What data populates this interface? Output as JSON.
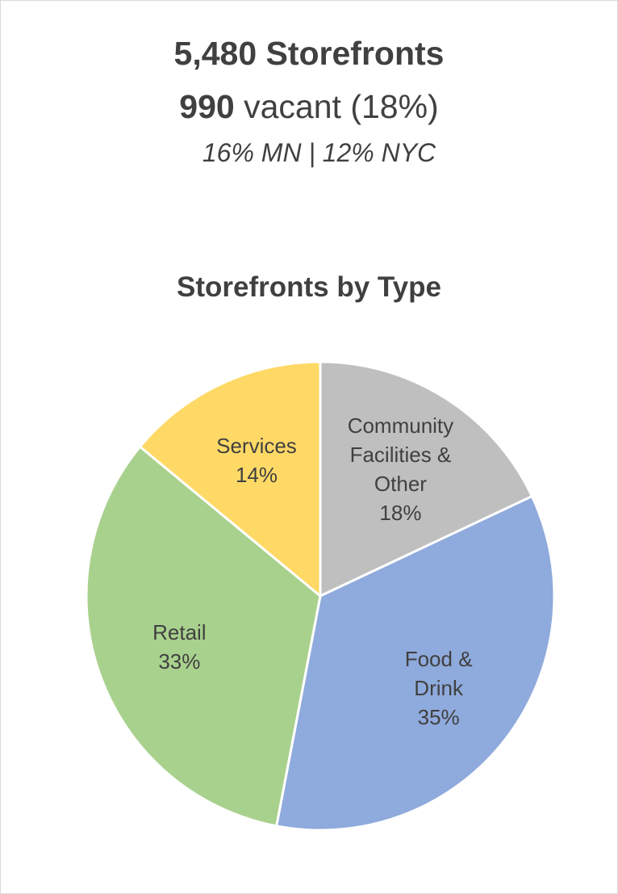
{
  "header": {
    "title": "5,480 Storefronts",
    "vacant_count": "990",
    "vacant_text": "vacant (18%)",
    "comparison": "16% MN | 12% NYC"
  },
  "chart_data": {
    "type": "pie",
    "title": "Storefronts by Type",
    "categories": [
      "Community Facilities & Other",
      "Food & Drink",
      "Retail",
      "Services"
    ],
    "values": [
      18,
      35,
      33,
      14
    ],
    "value_labels": [
      "18%",
      "35%",
      "33%",
      "14%"
    ],
    "colors": [
      "#bfbfbf",
      "#8faadc",
      "#a9d18e",
      "#ffd966"
    ]
  }
}
